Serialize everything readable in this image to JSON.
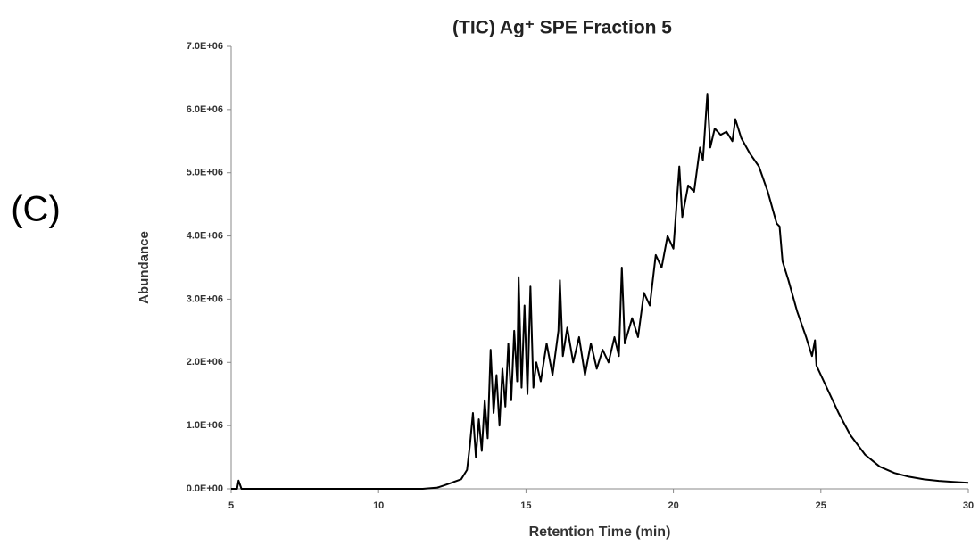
{
  "chart_data": {
    "type": "line",
    "title": "(TIC) Ag⁺ SPE Fraction 5",
    "annotation": "(C)",
    "x_label": "Retention Time (min)",
    "y_label": "Abundance",
    "xlim": [
      5,
      30
    ],
    "xticks": [
      5,
      10,
      15,
      20,
      25,
      30
    ],
    "ylim": [
      0,
      7000000
    ],
    "yticks": [
      {
        "value": 0,
        "label": "0.0E+00"
      },
      {
        "value": 1000000,
        "label": "1.0E+06"
      },
      {
        "value": 2000000,
        "label": "2.0E+06"
      },
      {
        "value": 3000000,
        "label": "3.0E+06"
      },
      {
        "value": 4000000,
        "label": "4.0E+06"
      },
      {
        "value": 5000000,
        "label": "5.0E+06"
      },
      {
        "value": 6000000,
        "label": "6.0E+06"
      },
      {
        "value": 7000000,
        "label": "7.0E+06"
      }
    ],
    "grid": false,
    "series": [
      {
        "color": "#000000",
        "x": [
          5.0,
          5.2,
          5.25,
          5.35,
          6.0,
          7.0,
          8.0,
          9.0,
          10.0,
          11.0,
          11.5,
          12.0,
          12.2,
          12.5,
          12.8,
          13.0,
          13.1,
          13.2,
          13.3,
          13.4,
          13.5,
          13.6,
          13.7,
          13.8,
          13.9,
          14.0,
          14.1,
          14.2,
          14.3,
          14.4,
          14.5,
          14.6,
          14.7,
          14.75,
          14.85,
          14.95,
          15.05,
          15.15,
          15.25,
          15.35,
          15.5,
          15.7,
          15.9,
          16.1,
          16.15,
          16.25,
          16.4,
          16.6,
          16.8,
          17.0,
          17.2,
          17.4,
          17.6,
          17.8,
          18.0,
          18.15,
          18.25,
          18.35,
          18.6,
          18.8,
          19.0,
          19.2,
          19.4,
          19.6,
          19.8,
          20.0,
          20.2,
          20.3,
          20.5,
          20.7,
          20.9,
          21.0,
          21.15,
          21.25,
          21.4,
          21.6,
          21.8,
          22.0,
          22.1,
          22.3,
          22.6,
          22.9,
          23.2,
          23.5,
          23.6,
          23.7,
          23.9,
          24.2,
          24.5,
          24.7,
          24.8,
          24.85,
          25.2,
          25.6,
          26.0,
          26.5,
          27.0,
          27.5,
          28.0,
          28.5,
          29.0,
          29.5,
          30.0
        ],
        "values": [
          0,
          0,
          130000,
          0,
          0,
          0,
          0,
          0,
          0,
          0,
          0,
          20000,
          50000,
          100000,
          150000,
          300000,
          700000,
          1200000,
          500000,
          1100000,
          600000,
          1400000,
          800000,
          2200000,
          1200000,
          1800000,
          1000000,
          1900000,
          1300000,
          2300000,
          1400000,
          2500000,
          1700000,
          3350000,
          1600000,
          2900000,
          1500000,
          3200000,
          1600000,
          2000000,
          1700000,
          2300000,
          1800000,
          2500000,
          3300000,
          2100000,
          2550000,
          2000000,
          2400000,
          1800000,
          2300000,
          1900000,
          2200000,
          2000000,
          2400000,
          2100000,
          3500000,
          2300000,
          2700000,
          2400000,
          3100000,
          2900000,
          3700000,
          3500000,
          4000000,
          3800000,
          5100000,
          4300000,
          4800000,
          4700000,
          5400000,
          5200000,
          6250000,
          5400000,
          5700000,
          5600000,
          5650000,
          5500000,
          5850000,
          5550000,
          5300000,
          5100000,
          4700000,
          4200000,
          4150000,
          3600000,
          3300000,
          2800000,
          2400000,
          2100000,
          2350000,
          1950000,
          1600000,
          1200000,
          850000,
          540000,
          350000,
          250000,
          190000,
          150000,
          125000,
          110000,
          95000
        ]
      }
    ]
  }
}
